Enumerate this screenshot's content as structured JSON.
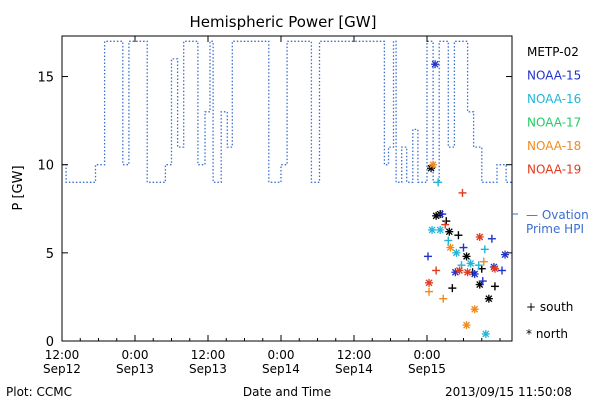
{
  "chart_data": {
    "type": "line",
    "title": "Hemispheric Power [GW]",
    "xlabel": "Date and Time",
    "ylabel": "P [GW]",
    "ylim": [
      0,
      17.3
    ],
    "yticks": [
      0,
      5,
      10,
      15
    ],
    "xlim_hours_label": "2013-09-12 12:00 to 2013-09-15 14:00",
    "xticks": [
      {
        "time": "2013-09-12 12:00",
        "line1": "12:00",
        "line2": "Sep12"
      },
      {
        "time": "2013-09-13 00:00",
        "line1": "0:00",
        "line2": "Sep13"
      },
      {
        "time": "2013-09-13 12:00",
        "line1": "12:00",
        "line2": "Sep13"
      },
      {
        "time": "2013-09-14 00:00",
        "line1": "0:00",
        "line2": "Sep14"
      },
      {
        "time": "2013-09-14 12:00",
        "line1": "12:00",
        "line2": "Sep14"
      },
      {
        "time": "2013-09-15 00:00",
        "line1": "0:00",
        "line2": "Sep15"
      }
    ],
    "ovation": {
      "label_line1": "— Ovation",
      "label_line2": "Prime HPI",
      "color": "#3a6fd0",
      "line_value": 7.1,
      "steps": [
        [
          "2013-09-12 12:00",
          10
        ],
        [
          "2013-09-12 12:40",
          9
        ],
        [
          "2013-09-12 13:50",
          9
        ],
        [
          "2013-09-12 16:00",
          9
        ],
        [
          "2013-09-12 17:30",
          10
        ],
        [
          "2013-09-12 19:00",
          17
        ],
        [
          "2013-09-12 22:00",
          10
        ],
        [
          "2013-09-12 23:00",
          17
        ],
        [
          "2013-09-13 02:00",
          9
        ],
        [
          "2013-09-13 03:30",
          9
        ],
        [
          "2013-09-13 05:00",
          10
        ],
        [
          "2013-09-13 06:00",
          16
        ],
        [
          "2013-09-13 07:00",
          11
        ],
        [
          "2013-09-13 08:00",
          17
        ],
        [
          "2013-09-13 10:20",
          10
        ],
        [
          "2013-09-13 11:30",
          13
        ],
        [
          "2013-09-13 12:20",
          17
        ],
        [
          "2013-09-13 12:50",
          9
        ],
        [
          "2013-09-13 14:10",
          13
        ],
        [
          "2013-09-13 15:10",
          11
        ],
        [
          "2013-09-13 16:00",
          17
        ],
        [
          "2013-09-13 22:00",
          9
        ],
        [
          "2013-09-13 23:40",
          9
        ],
        [
          "2013-09-14 00:00",
          10
        ],
        [
          "2013-09-14 01:00",
          17
        ],
        [
          "2013-09-14 05:00",
          9
        ],
        [
          "2013-09-14 06:20",
          17
        ],
        [
          "2013-09-14 17:00",
          10
        ],
        [
          "2013-09-14 17:40",
          11
        ],
        [
          "2013-09-14 18:30",
          17
        ],
        [
          "2013-09-14 18:55",
          9
        ],
        [
          "2013-09-14 19:50",
          11
        ],
        [
          "2013-09-14 20:40",
          9
        ],
        [
          "2013-09-14 21:40",
          12
        ],
        [
          "2013-09-14 22:30",
          9
        ],
        [
          "2013-09-14 23:00",
          9
        ],
        [
          "2013-09-15 00:00",
          17
        ],
        [
          "2013-09-15 01:00",
          9
        ],
        [
          "2013-09-15 02:00",
          17
        ],
        [
          "2013-09-15 03:30",
          11
        ],
        [
          "2013-09-15 04:30",
          17
        ],
        [
          "2013-09-15 06:40",
          13
        ],
        [
          "2013-09-15 07:40",
          11
        ],
        [
          "2013-09-15 09:00",
          9
        ],
        [
          "2013-09-15 11:30",
          10
        ],
        [
          "2013-09-15 13:00",
          9
        ]
      ],
      "end": "2013-09-15 14:00"
    },
    "series": [
      {
        "name": "METP-02",
        "color": "#000000",
        "points": [
          [
            "2013-09-15 00:40",
            9.8,
            "*"
          ],
          [
            "2013-09-15 01:30",
            7.1,
            "*"
          ],
          [
            "2013-09-15 02:10",
            7.2,
            "*"
          ],
          [
            "2013-09-15 03:10",
            6.8,
            "+"
          ],
          [
            "2013-09-15 03:40",
            6.2,
            "*"
          ],
          [
            "2013-09-15 05:10",
            6.0,
            "+"
          ],
          [
            "2013-09-15 06:30",
            4.8,
            "*"
          ],
          [
            "2013-09-15 07:30",
            3.9,
            "+"
          ],
          [
            "2013-09-15 08:40",
            3.2,
            "*"
          ],
          [
            "2013-09-15 10:10",
            2.4,
            "*"
          ],
          [
            "2013-09-15 11:10",
            3.1,
            "+"
          ],
          [
            "2013-09-15 04:10",
            3.0,
            "+"
          ],
          [
            "2013-09-15 09:00",
            4.1,
            "+"
          ]
        ]
      },
      {
        "name": "NOAA-15",
        "color": "#2233cc",
        "points": [
          [
            "2013-09-15 00:10",
            4.8,
            "+"
          ],
          [
            "2013-09-15 01:20",
            15.7,
            "*"
          ],
          [
            "2013-09-15 02:30",
            7.2,
            "+"
          ],
          [
            "2013-09-15 04:40",
            3.9,
            "*"
          ],
          [
            "2013-09-15 06:00",
            5.3,
            "+"
          ],
          [
            "2013-09-15 07:50",
            3.8,
            "*"
          ],
          [
            "2013-09-15 09:10",
            3.4,
            "+"
          ],
          [
            "2013-09-15 11:00",
            4.2,
            "*"
          ],
          [
            "2013-09-15 12:20",
            4.0,
            "+"
          ],
          [
            "2013-09-15 10:40",
            5.8,
            "+"
          ],
          [
            "2013-09-15 12:50",
            4.9,
            "*"
          ]
        ]
      },
      {
        "name": "NOAA-16",
        "color": "#22b5d8",
        "points": [
          [
            "2013-09-15 00:50",
            6.3,
            "*"
          ],
          [
            "2013-09-15 02:10",
            6.3,
            "*"
          ],
          [
            "2013-09-15 04:50",
            5.0,
            "*"
          ],
          [
            "2013-09-15 05:40",
            4.3,
            "+"
          ],
          [
            "2013-09-15 07:10",
            4.4,
            "*"
          ],
          [
            "2013-09-15 08:30",
            4.3,
            "+"
          ],
          [
            "2013-09-15 09:40",
            0.4,
            "*"
          ],
          [
            "2013-09-15 03:30",
            5.7,
            "+"
          ],
          [
            "2013-09-15 01:50",
            9.0,
            "+"
          ],
          [
            "2013-09-15 09:30",
            5.2,
            "+"
          ]
        ]
      },
      {
        "name": "NOAA-17",
        "color": "#22cc66",
        "points": []
      },
      {
        "name": "NOAA-18",
        "color": "#f08a1c",
        "points": [
          [
            "2013-09-15 00:20",
            2.8,
            "+"
          ],
          [
            "2013-09-15 01:00",
            10.0,
            "*"
          ],
          [
            "2013-09-15 02:40",
            2.4,
            "+"
          ],
          [
            "2013-09-15 03:50",
            5.3,
            "*"
          ],
          [
            "2013-09-15 06:30",
            0.9,
            "*"
          ],
          [
            "2013-09-15 07:50",
            1.8,
            "*"
          ],
          [
            "2013-09-15 09:20",
            4.5,
            "+"
          ]
        ]
      },
      {
        "name": "NOAA-19",
        "color": "#e03a1e",
        "points": [
          [
            "2013-09-15 00:20",
            3.3,
            "*"
          ],
          [
            "2013-09-15 01:30",
            4.0,
            "+"
          ],
          [
            "2013-09-15 05:50",
            8.4,
            "+"
          ],
          [
            "2013-09-15 05:20",
            4.0,
            "*"
          ],
          [
            "2013-09-15 06:40",
            3.9,
            "*"
          ],
          [
            "2013-09-15 08:40",
            5.9,
            "*"
          ],
          [
            "2013-09-15 11:10",
            4.1,
            "*"
          ],
          [
            "2013-09-15 03:00",
            6.6,
            "+"
          ]
        ]
      }
    ],
    "marker_legend": [
      {
        "symbol": "+",
        "label": "south"
      },
      {
        "symbol": "*",
        "label": "north"
      }
    ],
    "legend_placement": "right"
  },
  "footer": {
    "left": "Plot: CCMC",
    "right": "2013/09/15 11:50:08"
  }
}
